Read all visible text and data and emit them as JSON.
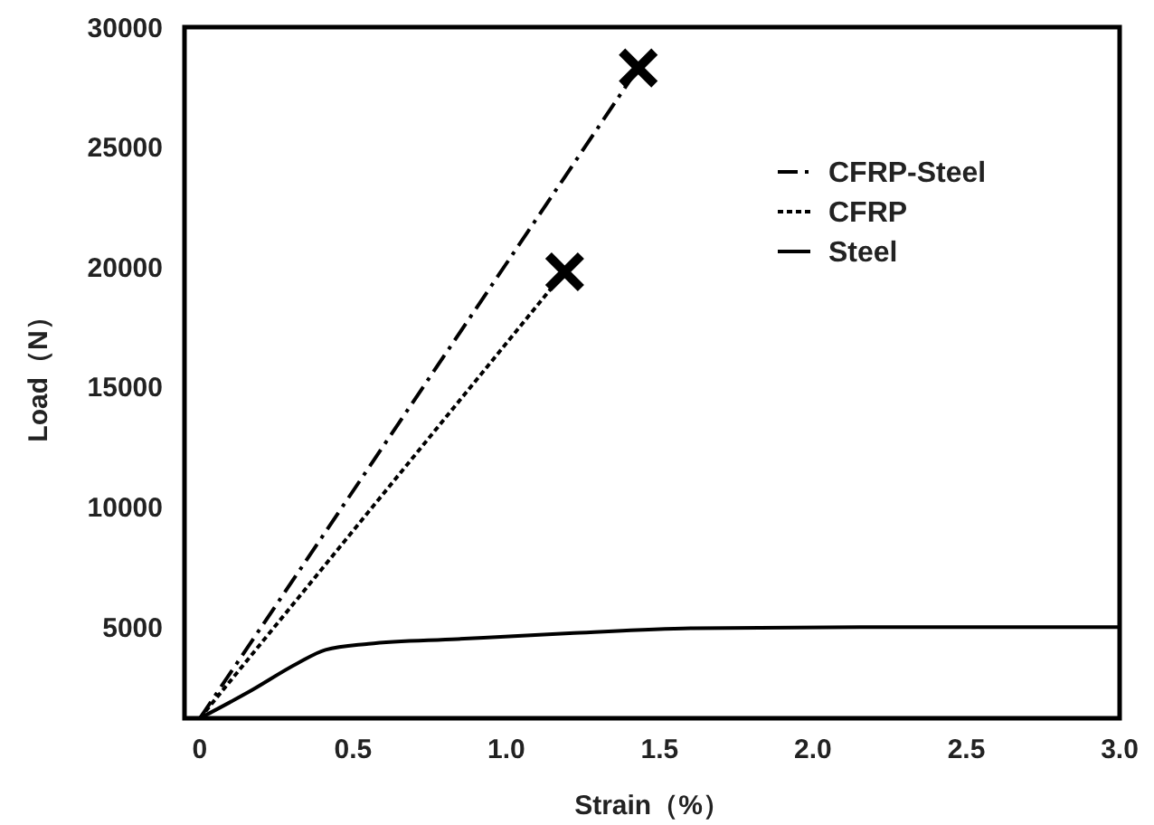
{
  "chart_data": {
    "type": "line",
    "xlabel": "Strain（%）",
    "ylabel": "Load（N）",
    "xlim": [
      -0.05,
      3.0
    ],
    "xticks": [
      0,
      {
        "value": 0.5,
        "label": "0.5"
      },
      {
        "value": 1,
        "label": "1.0"
      },
      1.5,
      {
        "value": 2,
        "label": "2.0"
      },
      2.5,
      {
        "value": 3,
        "label": "3.0"
      }
    ],
    "ylim": [
      1200,
      30000
    ],
    "yticks": [
      5000,
      10000,
      15000,
      20000,
      25000,
      30000
    ],
    "grid": false,
    "legend": "top right",
    "marker": "none",
    "series": [
      {
        "name": "CFRP-Steel",
        "color": "#000000",
        "line_style": "dashed",
        "x": [
          0,
          1.43
        ],
        "values": [
          1200,
          28300
        ]
      },
      {
        "name": "CFRP",
        "color": "#000000",
        "line_style": "dotted",
        "x": [
          0,
          1.19
        ],
        "values": [
          1200,
          19800
        ]
      },
      {
        "name": "Steel",
        "color": "#000000",
        "line_style": "solid",
        "x": [
          0,
          0.16,
          0.32,
          0.41,
          0.55,
          0.84,
          1.22,
          1.61,
          2.31,
          3.0
        ],
        "values": [
          1200,
          2300,
          3500,
          4050,
          4300,
          4500,
          4750,
          4950,
          5000,
          5000
        ]
      },
      {
        "type": "scatter",
        "marker": "cross",
        "color": "#000000",
        "x": [
          1.19,
          1.43
        ],
        "values": [
          19800,
          28300
        ]
      }
    ]
  }
}
